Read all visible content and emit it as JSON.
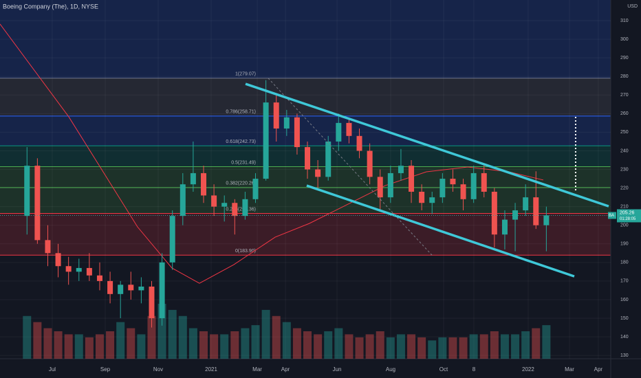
{
  "chart_data": {
    "type": "candlestick",
    "title": "Boeing Company (The), 1D, NYSE",
    "currency": "USD",
    "last_price": 205.26,
    "symbol": "BA",
    "countdown": "01:28:05",
    "xlim": [
      -2.6,
      56.2
    ],
    "ylim": [
      128.2,
      321.1
    ],
    "yticks": [
      130,
      140,
      150,
      160,
      170,
      180,
      190,
      200,
      210,
      220,
      230,
      240,
      250,
      260,
      270,
      280,
      290,
      300,
      310
    ],
    "xticks": [
      {
        "value": 2.43,
        "label": "Jul"
      },
      {
        "value": 7.53,
        "label": "Sep"
      },
      {
        "value": 12.63,
        "label": "Nov"
      },
      {
        "value": 17.73,
        "label": "2021"
      },
      {
        "value": 22.17,
        "label": "Mar"
      },
      {
        "value": 24.88,
        "label": "Apr"
      },
      {
        "value": 29.85,
        "label": "Jun"
      },
      {
        "value": 35.01,
        "label": "Aug"
      },
      {
        "value": 40.11,
        "label": "Oct"
      },
      {
        "value": 43.02,
        "label": "8"
      },
      {
        "value": 48.25,
        "label": "2022"
      },
      {
        "value": 52.23,
        "label": "Mar"
      },
      {
        "value": 55.0,
        "label": "Apr"
      }
    ],
    "up_color": "#26a69a",
    "down_color": "#ef5350",
    "open": [
      205,
      232,
      192,
      185,
      178,
      175,
      177,
      173,
      170,
      163,
      168,
      165,
      167,
      150,
      180,
      205,
      222,
      228,
      216,
      210,
      212,
      205,
      214,
      225,
      266,
      252,
      258,
      242,
      230,
      226,
      245,
      255,
      248,
      240,
      226,
      215,
      228,
      232,
      218,
      212,
      215,
      225,
      222,
      214,
      228,
      218,
      195,
      203,
      208,
      215,
      200
    ],
    "high": [
      242,
      236,
      200,
      190,
      183,
      182,
      185,
      180,
      175,
      170,
      175,
      172,
      170,
      185,
      208,
      228,
      245,
      232,
      222,
      216,
      214,
      218,
      228,
      278,
      270,
      262,
      260,
      245,
      235,
      248,
      260,
      258,
      252,
      244,
      230,
      232,
      241,
      235,
      222,
      218,
      228,
      230,
      225,
      232,
      233,
      220,
      208,
      212,
      222,
      229,
      210
    ],
    "low": [
      195,
      190,
      178,
      172,
      168,
      170,
      170,
      165,
      158,
      150,
      160,
      158,
      145,
      146,
      176,
      200,
      218,
      212,
      205,
      202,
      195,
      203,
      212,
      224,
      245,
      248,
      238,
      225,
      220,
      224,
      240,
      244,
      236,
      222,
      208,
      212,
      224,
      212,
      208,
      206,
      212,
      218,
      208,
      212,
      215,
      188,
      187,
      186,
      205,
      198,
      186
    ],
    "close": [
      232,
      192,
      185,
      178,
      175,
      177,
      173,
      170,
      163,
      168,
      165,
      167,
      150,
      180,
      205,
      222,
      228,
      216,
      210,
      212,
      205,
      214,
      225,
      266,
      252,
      258,
      242,
      230,
      226,
      245,
      255,
      248,
      240,
      226,
      215,
      228,
      232,
      218,
      212,
      215,
      225,
      222,
      214,
      228,
      218,
      195,
      203,
      208,
      215,
      200,
      205.26
    ],
    "volume": [
      14,
      12,
      10,
      9,
      8,
      8,
      7,
      8,
      9,
      12,
      10,
      8,
      14,
      18,
      16,
      14,
      10,
      9,
      8,
      8,
      9,
      10,
      11,
      16,
      14,
      12,
      10,
      9,
      8,
      9,
      10,
      8,
      7,
      8,
      9,
      7,
      8,
      8,
      7,
      6,
      7,
      7,
      7,
      8,
      8,
      9,
      8,
      8,
      9,
      10,
      11
    ],
    "fib_levels": [
      {
        "value": 279.07,
        "label": "1(279.07)"
      },
      {
        "value": 258.71,
        "label": "0.786(258.71)"
      },
      {
        "value": 242.73,
        "label": "0.618(242.73)"
      },
      {
        "value": 231.49,
        "label": "0.5(231.49)"
      },
      {
        "value": 220.26,
        "label": "0.382(220.26)"
      },
      {
        "value": 206.36,
        "label": "0.236(206.36)"
      },
      {
        "value": 183.9,
        "label": "0(183.90)"
      }
    ],
    "fib_colors": [
      "#787b86",
      "#2962ff",
      "#089981",
      "#4caf50",
      "#4caf50",
      "#f23645"
    ],
    "fib_line": {
      "x": [
        23.22,
        38.99
      ],
      "y": [
        279.07,
        183.9
      ]
    },
    "trendlines": [
      {
        "x": [
          21.04,
          56.0
        ],
        "y": [
          276.0,
          210.2
        ],
        "color": "#3fc8d8"
      },
      {
        "x": [
          26.93,
          52.69
        ],
        "y": [
          221.3,
          172.5
        ],
        "color": "#3fc8d8"
      }
    ],
    "measure": {
      "x": 52.82,
      "y": [
        258.3,
        218.4
      ]
    },
    "ma": {
      "color": "#f23645",
      "x": [
        -2.6,
        4.02,
        10.64,
        13.95,
        16.6,
        19.91,
        23.89,
        27.2,
        30.51,
        34.48,
        38.45,
        42.43,
        46.4,
        49.71
      ],
      "y": [
        308.2,
        258.3,
        199.1,
        177.0,
        168.8,
        178.8,
        193.6,
        201.0,
        210.2,
        221.3,
        228.7,
        231.3,
        228.7,
        224.3
      ]
    }
  }
}
